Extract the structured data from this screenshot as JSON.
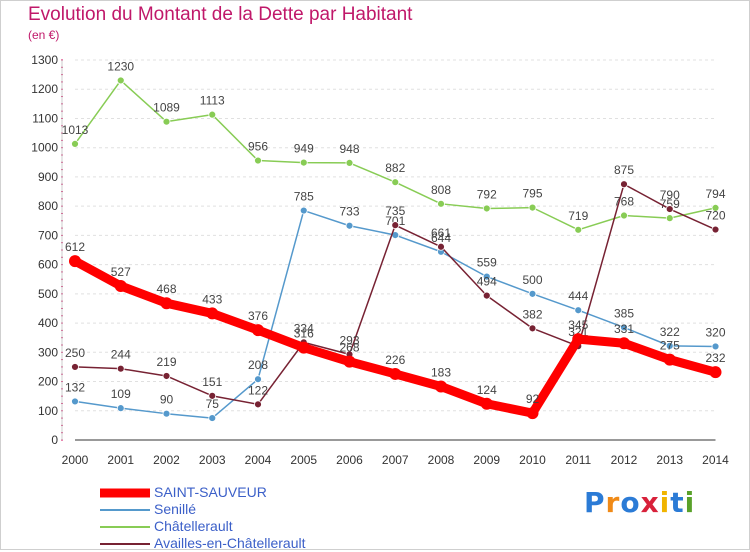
{
  "header": {
    "title": "Evolution du Montant de la Dette par Habitant",
    "unit": "(en €)"
  },
  "colors": {
    "title": "#c0186a",
    "legend_text": "#3b5fc8"
  },
  "logo": {
    "text": "Proxiti",
    "letter_colors": [
      "#2b7bd6",
      "#f08a17",
      "#2b7bd6",
      "#d8213a",
      "#f0b400",
      "#2b7bd6",
      "#59a12a"
    ]
  },
  "chart_data": {
    "type": "line",
    "x": [
      "2000",
      "2001",
      "2002",
      "2003",
      "2004",
      "2005",
      "2006",
      "2007",
      "2008",
      "2009",
      "2010",
      "2011",
      "2012",
      "2013",
      "2014"
    ],
    "ylim": [
      0,
      1300
    ],
    "yticks": [
      0,
      100,
      200,
      300,
      400,
      500,
      600,
      700,
      800,
      900,
      1000,
      1100,
      1200,
      1300
    ],
    "grid": true,
    "legend_position": "bottom-left",
    "series": [
      {
        "name": "Châtellerault",
        "color": "#88cc55",
        "values": [
          1013,
          1230,
          1089,
          1113,
          956,
          949,
          948,
          882,
          808,
          792,
          795,
          719,
          768,
          759,
          794
        ],
        "labels": [
          "1013",
          "1230",
          "1089",
          "1113",
          "956",
          "949",
          "948",
          "882",
          "808",
          "792",
          "795",
          "719",
          "768",
          "759",
          "794"
        ]
      },
      {
        "name": "Senillé",
        "color": "#5599cc",
        "values": [
          132,
          109,
          90,
          75,
          208,
          785,
          733,
          701,
          644,
          559,
          500,
          444,
          385,
          322,
          320
        ],
        "labels": [
          "132",
          "109",
          "90",
          "75",
          "208",
          "785",
          "733",
          "701",
          "644",
          "559",
          "500",
          "444",
          "385",
          "322",
          "320"
        ]
      },
      {
        "name": "Availles-en-Châtellerault",
        "color": "#772233",
        "values": [
          250,
          244,
          219,
          151,
          122,
          334,
          293,
          735,
          661,
          494,
          382,
          321,
          875,
          790,
          720
        ],
        "labels": [
          "250",
          "244",
          "219",
          "151",
          "122",
          "334",
          "293",
          "735",
          "661",
          "494",
          "382",
          "321",
          "875",
          "790",
          "720"
        ]
      },
      {
        "name": "SAINT-SAUVEUR",
        "color": "#ff0000",
        "values": [
          612,
          527,
          468,
          433,
          376,
          316,
          268,
          226,
          183,
          124,
          92,
          345,
          331,
          275,
          232
        ],
        "labels": [
          "612",
          "527",
          "468",
          "433",
          "376",
          "316",
          "268",
          "226",
          "183",
          "124",
          "92",
          "345",
          "331",
          "275",
          "232"
        ]
      }
    ],
    "legend": [
      {
        "name": "SAINT-SAUVEUR",
        "color": "#ff0000",
        "thickness": 9
      },
      {
        "name": "Senillé",
        "color": "#5599cc",
        "thickness": 2
      },
      {
        "name": "Châtellerault",
        "color": "#88cc55",
        "thickness": 2
      },
      {
        "name": "Availles-en-Châtellerault",
        "color": "#772233",
        "thickness": 2
      }
    ]
  }
}
